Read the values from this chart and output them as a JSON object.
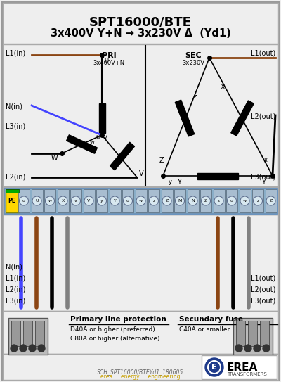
{
  "title_line1": "SPT16000/BTE",
  "title_line2": "3x400V Y+N → 3x230V Δ  (Yd1)",
  "bg_color": "#eeeeee",
  "border_color": "#aaaaaa",
  "pri_label": "PRI",
  "pri_sublabel": "3x400V+N",
  "sec_label": "SEC",
  "sec_sublabel": "3x230V",
  "footer_text": "SCH_SPT16000/BTEYd1_180605",
  "erea_text": "EREA",
  "erea_sub": "TRANSFORMERS",
  "erea_tagline": "erea  ·  energy  ·  engineering",
  "color_brown": "#8B4513",
  "color_blue": "#4444ff",
  "color_black": "#111111",
  "color_grey": "#808080",
  "color_terminal_blue": "#5b8ec4",
  "color_yellow": "#ffd700",
  "color_green": "#00aa00"
}
